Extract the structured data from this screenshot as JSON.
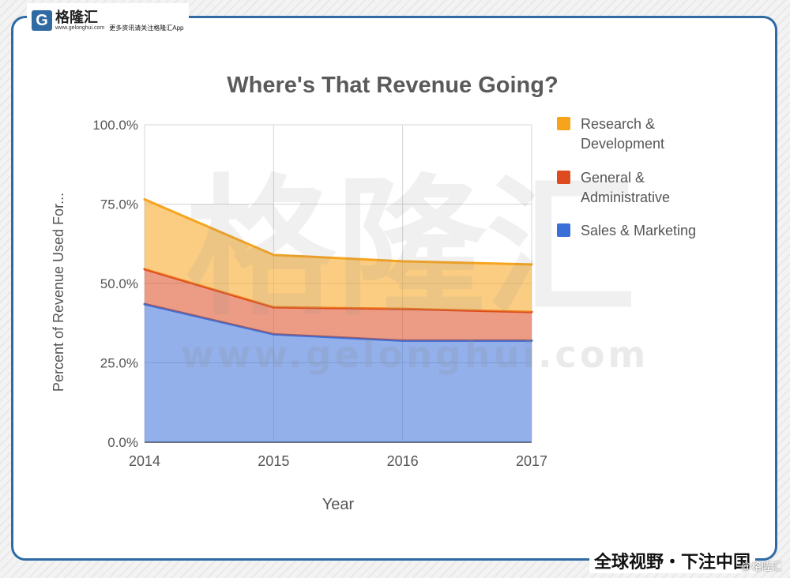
{
  "branding": {
    "logo_letter": "G",
    "logo_name": "格隆汇",
    "logo_url": "www.gelonghui.com",
    "header_slogan": "更多资讯请关注格隆汇App",
    "footer_slogan": "全球视野・下注中国",
    "footer_credit": "@格隆汇",
    "watermark_name": "格隆汇",
    "watermark_url": "www.gelonghui.com"
  },
  "colors": {
    "frame": "#2f6aa3",
    "research": "#f7a41d",
    "general": "#dd4b1f",
    "sales": "#3a6fd8"
  },
  "chart_data": {
    "type": "area",
    "stacked": true,
    "title": "Where's That Revenue Going?",
    "xlabel": "Year",
    "ylabel": "Percent of Revenue Used For...",
    "x": [
      "2014",
      "2015",
      "2016",
      "2017"
    ],
    "ylim": [
      0,
      100
    ],
    "yticks": [
      "0.0%",
      "25.0%",
      "50.0%",
      "75.0%",
      "100.0%"
    ],
    "grid": true,
    "legend_position": "right",
    "series": [
      {
        "name": "Sales & Marketing",
        "color": "#3a6fd8",
        "values": [
          43.5,
          34.0,
          32.0,
          32.0
        ]
      },
      {
        "name": "General & Administrative",
        "color": "#dd4b1f",
        "values": [
          11.0,
          8.5,
          10.0,
          9.0
        ]
      },
      {
        "name": "Research & Development",
        "color": "#f7a41d",
        "values": [
          22.0,
          16.5,
          15.0,
          15.0
        ]
      }
    ],
    "legend_order": [
      "Research & Development",
      "General & Administrative",
      "Sales & Marketing"
    ]
  }
}
